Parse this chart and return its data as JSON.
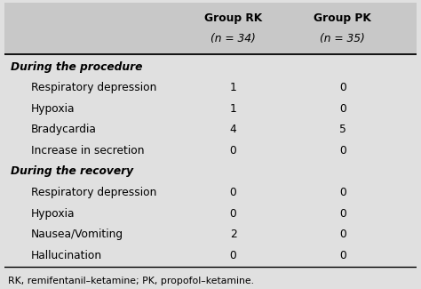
{
  "col1_header_line1": "Group RK",
  "col1_header_line2": "(n = 34)",
  "col2_header_line1": "Group PK",
  "col2_header_line2": "(n = 35)",
  "section1_header": "During the procedure",
  "section1_rows": [
    [
      "Respiratory depression",
      "1",
      "0"
    ],
    [
      "Hypoxia",
      "1",
      "0"
    ],
    [
      "Bradycardia",
      "4",
      "5"
    ],
    [
      "Increase in secretion",
      "0",
      "0"
    ]
  ],
  "section2_header": "During the recovery",
  "section2_rows": [
    [
      "Respiratory depression",
      "0",
      "0"
    ],
    [
      "Hypoxia",
      "0",
      "0"
    ],
    [
      "Nausea/Vomiting",
      "2",
      "0"
    ],
    [
      "Hallucination",
      "0",
      "0"
    ]
  ],
  "footnote": "RK, remifentanil–ketamine; PK, propofol–ketamine.",
  "bg_color": "#e0e0e0",
  "header_bg": "#c8c8c8",
  "text_color": "#000000"
}
